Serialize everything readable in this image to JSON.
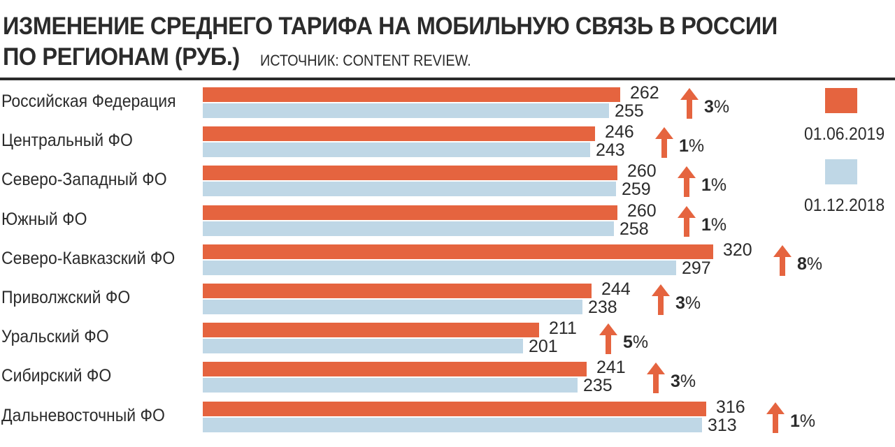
{
  "header": {
    "title_line1": "ИЗМЕНЕНИЕ СРЕДНЕГО ТАРИФА НА МОБИЛЬНУЮ СВЯЗЬ В РОССИИ",
    "title_line2": "ПО РЕГИОНАМ (РУБ.)",
    "source": "ИСТОЧНИК: CONTENT REVIEW."
  },
  "colors": {
    "current": "#e5643f",
    "previous": "#bfd7e6",
    "text": "#2b2b2b"
  },
  "chart_data": {
    "type": "bar",
    "orientation": "horizontal",
    "title": "ИЗМЕНЕНИЕ СРЕДНЕГО ТАРИФА НА МОБИЛЬНУЮ СВЯЗЬ В РОССИИ ПО РЕГИОНАМ (РУБ.)",
    "categories": [
      "Российская Федерация",
      "Центральный ФО",
      "Северо-Западный ФО",
      "Южный ФО",
      "Северо-Кавказский ФО",
      "Приволжский ФО",
      "Уральский ФО",
      "Сибирский ФО",
      "Дальневосточный ФО"
    ],
    "series": [
      {
        "name": "01.06.2019",
        "color": "#e5643f",
        "values": [
          262,
          246,
          260,
          260,
          320,
          244,
          211,
          241,
          316
        ]
      },
      {
        "name": "01.12.2018",
        "color": "#bfd7e6",
        "values": [
          255,
          243,
          259,
          258,
          297,
          238,
          201,
          235,
          313
        ]
      }
    ],
    "change": [
      {
        "num": "3",
        "unit": "%"
      },
      {
        "num": "1",
        "unit": "%"
      },
      {
        "num": "1",
        "unit": "%"
      },
      {
        "num": "1",
        "unit": "%"
      },
      {
        "num": "8",
        "unit": "%"
      },
      {
        "num": "3",
        "unit": "%"
      },
      {
        "num": "5",
        "unit": "%"
      },
      {
        "num": "3",
        "unit": "%"
      },
      {
        "num": "1",
        "unit": "%"
      }
    ],
    "xlim": [
      0,
      320
    ],
    "legend_position": "right",
    "grid": false,
    "xlabel": "",
    "ylabel": ""
  }
}
